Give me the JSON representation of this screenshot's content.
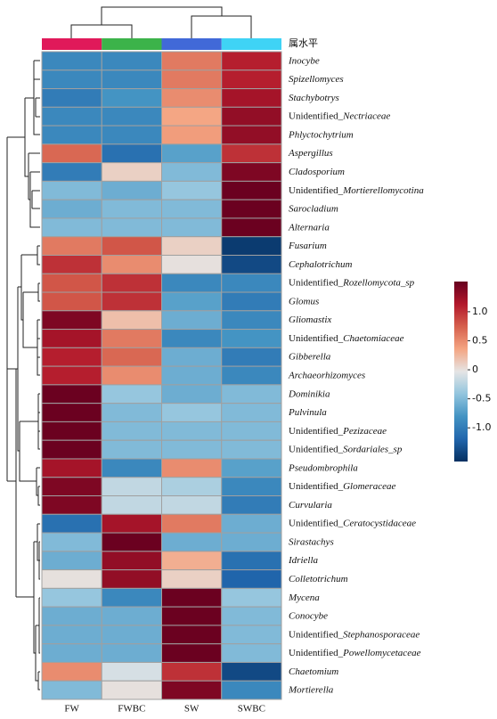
{
  "chart_data": {
    "type": "heatmap",
    "annotation": "属水平",
    "columns": [
      "FW",
      "FWBC",
      "SW",
      "SWBC"
    ],
    "column_colors": [
      "#e0195a",
      "#3cb34a",
      "#4169d8",
      "#3fd3f5"
    ],
    "rows": [
      "Inocybe",
      "Spizellomyces",
      "Stachybotrys",
      "Unidentified_Nectriaceae",
      "Phlyctochytrium",
      "Aspergillus",
      "Cladosporium",
      "Unidentified_Mortierellomycotina",
      "Sarocladium",
      "Alternaria",
      "Fusarium",
      "Cephalotrichum",
      "Unidentified_Rozellomycota_sp",
      "Glomus",
      "Gliomastix",
      "Unidentified_Chaetomiaceae",
      "Gibberella",
      "Archaeorhizomyces",
      "Dominikia",
      "Pulvinula",
      "Unidentified_Pezizaceae",
      "Unidentified_Sordariales_sp",
      "Pseudombrophila",
      "Unidentified_Glomeraceae",
      "Curvularia",
      "Unidentified_Ceratocystidaceae",
      "Sirastachys",
      "Idriella",
      "Colletotrichum",
      "Mycena",
      "Conocybe",
      "Unidentified_Stephanosporaceae",
      "Unidentified_Powellomycetaceae",
      "Chaetomium",
      "Mortierella"
    ],
    "values": [
      [
        -0.9,
        -0.9,
        0.6,
        1.1
      ],
      [
        -0.9,
        -0.9,
        0.6,
        1.1
      ],
      [
        -1.0,
        -0.8,
        0.5,
        1.2
      ],
      [
        -0.9,
        -0.9,
        0.35,
        1.3
      ],
      [
        -0.9,
        -0.9,
        0.4,
        1.3
      ],
      [
        0.7,
        -1.1,
        -0.7,
        1.0
      ],
      [
        -1.0,
        0.1,
        -0.5,
        1.4
      ],
      [
        -0.5,
        -0.6,
        -0.4,
        1.5
      ],
      [
        -0.6,
        -0.5,
        -0.5,
        1.5
      ],
      [
        -0.5,
        -0.5,
        -0.5,
        1.5
      ],
      [
        0.6,
        0.8,
        0.1,
        -1.5
      ],
      [
        1.0,
        0.5,
        0.0,
        -1.4
      ],
      [
        0.8,
        1.0,
        -0.9,
        -0.9
      ],
      [
        0.8,
        1.0,
        -0.7,
        -1.0
      ],
      [
        1.4,
        0.2,
        -0.6,
        -0.9
      ],
      [
        1.2,
        0.6,
        -0.9,
        -0.8
      ],
      [
        1.1,
        0.7,
        -0.6,
        -1.0
      ],
      [
        1.1,
        0.5,
        -0.6,
        -0.9
      ],
      [
        1.5,
        -0.4,
        -0.6,
        -0.5
      ],
      [
        1.5,
        -0.5,
        -0.4,
        -0.5
      ],
      [
        1.5,
        -0.5,
        -0.5,
        -0.5
      ],
      [
        1.5,
        -0.5,
        -0.5,
        -0.5
      ],
      [
        1.2,
        -0.9,
        0.5,
        -0.7
      ],
      [
        1.4,
        -0.2,
        -0.3,
        -0.9
      ],
      [
        1.4,
        -0.2,
        -0.2,
        -1.0
      ],
      [
        -1.1,
        1.2,
        0.6,
        -0.6
      ],
      [
        -0.5,
        1.5,
        -0.6,
        -0.6
      ],
      [
        -0.6,
        1.3,
        0.3,
        -1.1
      ],
      [
        0.0,
        1.3,
        0.1,
        -1.2
      ],
      [
        -0.4,
        -0.9,
        1.5,
        -0.4
      ],
      [
        -0.6,
        -0.6,
        1.5,
        -0.5
      ],
      [
        -0.6,
        -0.6,
        1.5,
        -0.5
      ],
      [
        -0.6,
        -0.6,
        1.5,
        -0.5
      ],
      [
        0.5,
        -0.1,
        1.0,
        -1.4
      ],
      [
        -0.5,
        0.0,
        1.4,
        -0.9
      ]
    ],
    "clim": [
      -1.58,
      1.52
    ],
    "cticks": [
      {
        "value": 1,
        "label": "1.0"
      },
      0.5,
      0,
      -0.5,
      {
        "value": -1,
        "label": "-1.0"
      }
    ],
    "colormap": [
      "#053061",
      "#2166ac",
      "#4393c3",
      "#92c5de",
      "#e5e5e5",
      "#f4a582",
      "#d6604d",
      "#b2182b",
      "#67001f"
    ],
    "cell_border": "#a0a0a0"
  }
}
